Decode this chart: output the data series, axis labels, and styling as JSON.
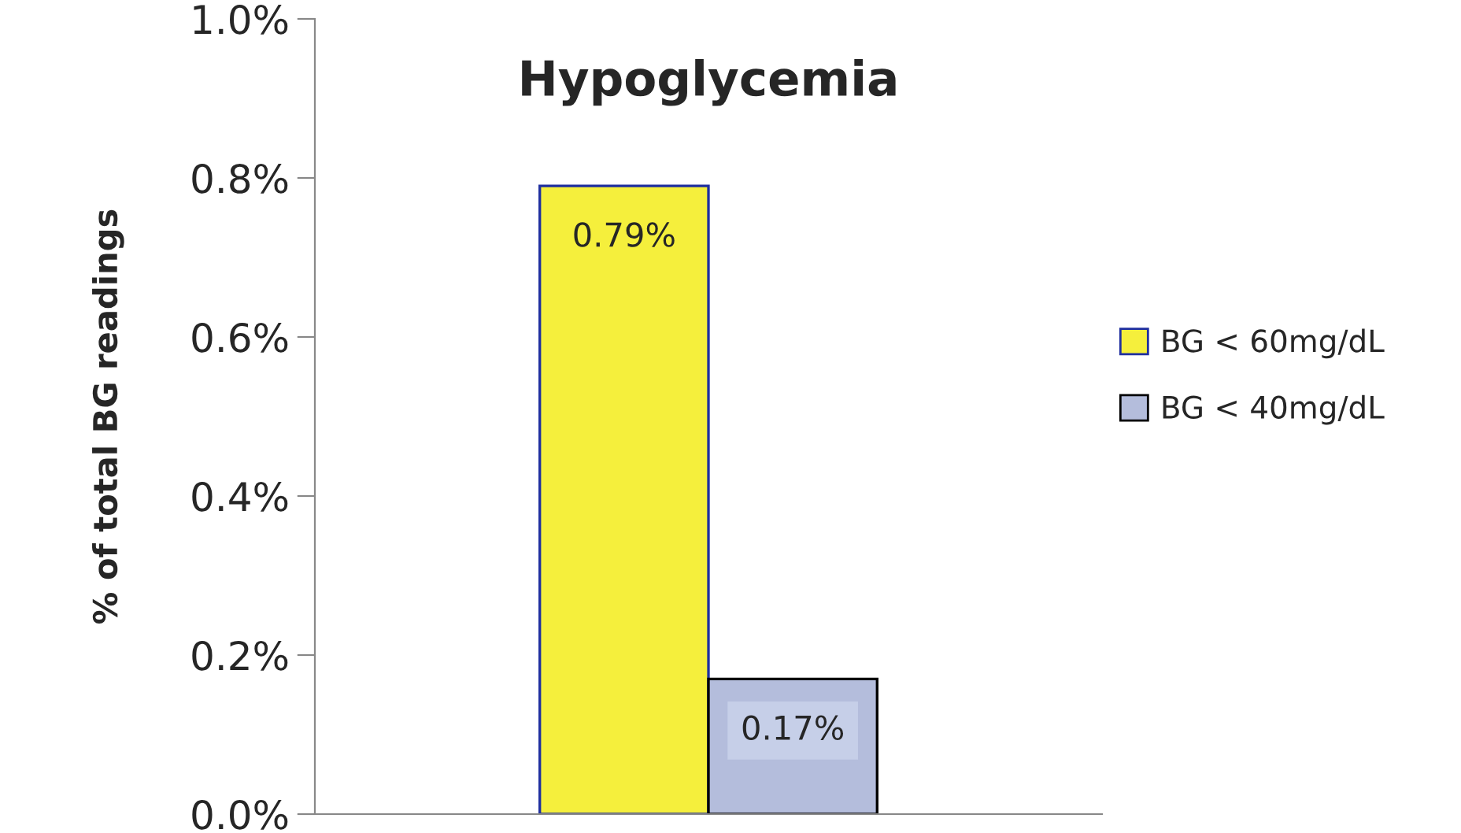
{
  "chart_data": {
    "type": "bar",
    "title": "Hypoglycemia",
    "ylabel": "% of total BG readings",
    "categories": [
      null
    ],
    "series": [
      {
        "name": "BG < 60mg/dL",
        "color": "#f5ef3c",
        "values": [
          0.79
        ],
        "value_labels": [
          "0.79%"
        ]
      },
      {
        "name": "BG < 40mg/dL",
        "color": "#b4bddc",
        "values": [
          0.17
        ],
        "value_labels": [
          "0.17%"
        ]
      }
    ],
    "ylim": [
      0,
      1.0
    ],
    "yticks": [
      {
        "value": 0,
        "label": "0.0%"
      },
      {
        "value": 0.2,
        "label": "0.2%"
      },
      {
        "value": 0.4,
        "label": "0.4%"
      },
      {
        "value": 0.6,
        "label": "0.6%"
      },
      {
        "value": 0.8,
        "label": "0.8%"
      },
      {
        "value": 1.0,
        "label": "1.0%"
      }
    ],
    "grid": false,
    "legend": "right"
  }
}
